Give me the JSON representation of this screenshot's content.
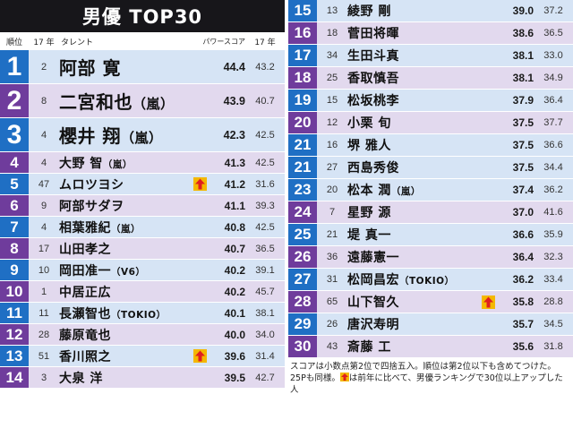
{
  "title": "男優 TOP30",
  "columns": {
    "rank": "順位",
    "y17": "17 年",
    "talent": "タレント",
    "score": "パワースコア",
    "prev": "17 年"
  },
  "colors": {
    "blue_rank": "#1f6fc4",
    "purple_rank": "#6f3c9c",
    "blue_row": "#d6e4f5",
    "purple_row": "#e2d9ee",
    "arrow": "#f4b800",
    "arrow_head": "#e01f1f"
  },
  "left": [
    {
      "rank": "1",
      "y17": "2",
      "name": "阿部 寛",
      "group": "",
      "up": false,
      "score": "44.4",
      "prev": "43.2"
    },
    {
      "rank": "2",
      "y17": "8",
      "name": "二宮和也",
      "group": "（嵐）",
      "up": false,
      "score": "43.9",
      "prev": "40.7"
    },
    {
      "rank": "3",
      "y17": "4",
      "name": "櫻井 翔",
      "group": "（嵐）",
      "up": false,
      "score": "42.3",
      "prev": "42.5"
    },
    {
      "rank": "4",
      "y17": "4",
      "name": "大野 智",
      "group": "（嵐）",
      "up": false,
      "score": "41.3",
      "prev": "42.5"
    },
    {
      "rank": "5",
      "y17": "47",
      "name": "ムロツヨシ",
      "group": "",
      "up": true,
      "score": "41.2",
      "prev": "31.6"
    },
    {
      "rank": "6",
      "y17": "9",
      "name": "阿部サダヲ",
      "group": "",
      "up": false,
      "score": "41.1",
      "prev": "39.3"
    },
    {
      "rank": "7",
      "y17": "4",
      "name": "相葉雅紀",
      "group": "（嵐）",
      "up": false,
      "score": "40.8",
      "prev": "42.5"
    },
    {
      "rank": "8",
      "y17": "17",
      "name": "山田孝之",
      "group": "",
      "up": false,
      "score": "40.7",
      "prev": "36.5"
    },
    {
      "rank": "9",
      "y17": "10",
      "name": "岡田准一",
      "group": "（V6）",
      "up": false,
      "score": "40.2",
      "prev": "39.1"
    },
    {
      "rank": "10",
      "y17": "1",
      "name": "中居正広",
      "group": "",
      "up": false,
      "score": "40.2",
      "prev": "45.7"
    },
    {
      "rank": "11",
      "y17": "11",
      "name": "長瀬智也",
      "group": "（TOKIO）",
      "up": false,
      "score": "40.1",
      "prev": "38.1"
    },
    {
      "rank": "12",
      "y17": "28",
      "name": "藤原竜也",
      "group": "",
      "up": false,
      "score": "40.0",
      "prev": "34.0"
    },
    {
      "rank": "13",
      "y17": "51",
      "name": "香川照之",
      "group": "",
      "up": true,
      "score": "39.6",
      "prev": "31.4"
    },
    {
      "rank": "14",
      "y17": "3",
      "name": "大泉 洋",
      "group": "",
      "up": false,
      "score": "39.5",
      "prev": "42.7"
    }
  ],
  "right": [
    {
      "rank": "15",
      "y17": "13",
      "name": "綾野 剛",
      "group": "",
      "up": false,
      "score": "39.0",
      "prev": "37.2"
    },
    {
      "rank": "16",
      "y17": "18",
      "name": "菅田将暉",
      "group": "",
      "up": false,
      "score": "38.6",
      "prev": "36.5"
    },
    {
      "rank": "17",
      "y17": "34",
      "name": "生田斗真",
      "group": "",
      "up": false,
      "score": "38.1",
      "prev": "33.0"
    },
    {
      "rank": "18",
      "y17": "25",
      "name": "香取慎吾",
      "group": "",
      "up": false,
      "score": "38.1",
      "prev": "34.9"
    },
    {
      "rank": "19",
      "y17": "15",
      "name": "松坂桃李",
      "group": "",
      "up": false,
      "score": "37.9",
      "prev": "36.4"
    },
    {
      "rank": "20",
      "y17": "12",
      "name": "小栗 旬",
      "group": "",
      "up": false,
      "score": "37.5",
      "prev": "37.7"
    },
    {
      "rank": "21",
      "y17": "16",
      "name": "堺 雅人",
      "group": "",
      "up": false,
      "score": "37.5",
      "prev": "36.6"
    },
    {
      "rank": "21",
      "y17": "27",
      "name": "西島秀俊",
      "group": "",
      "up": false,
      "score": "37.5",
      "prev": "34.4"
    },
    {
      "rank": "23",
      "y17": "20",
      "name": "松本 潤",
      "group": "（嵐）",
      "up": false,
      "score": "37.4",
      "prev": "36.2"
    },
    {
      "rank": "24",
      "y17": "7",
      "name": "星野 源",
      "group": "",
      "up": false,
      "score": "37.0",
      "prev": "41.6"
    },
    {
      "rank": "25",
      "y17": "21",
      "name": "堤 真一",
      "group": "",
      "up": false,
      "score": "36.6",
      "prev": "35.9"
    },
    {
      "rank": "26",
      "y17": "36",
      "name": "遠藤憲一",
      "group": "",
      "up": false,
      "score": "36.4",
      "prev": "32.3"
    },
    {
      "rank": "27",
      "y17": "31",
      "name": "松岡昌宏",
      "group": "（TOKIO）",
      "up": false,
      "score": "36.2",
      "prev": "33.4"
    },
    {
      "rank": "28",
      "y17": "65",
      "name": "山下智久",
      "group": "",
      "up": true,
      "score": "35.8",
      "prev": "28.8"
    },
    {
      "rank": "29",
      "y17": "26",
      "name": "唐沢寿明",
      "group": "",
      "up": false,
      "score": "35.7",
      "prev": "34.5"
    },
    {
      "rank": "30",
      "y17": "43",
      "name": "斎藤 工",
      "group": "",
      "up": false,
      "score": "35.6",
      "prev": "31.8"
    }
  ],
  "footnote": {
    "part1": "スコアは小数点第2位で四捨五入。順位は第2位以下も含めてつけた。25Pも同様。",
    "part2": "は前年に比べて、男優ランキングで30位以上アップした人"
  }
}
